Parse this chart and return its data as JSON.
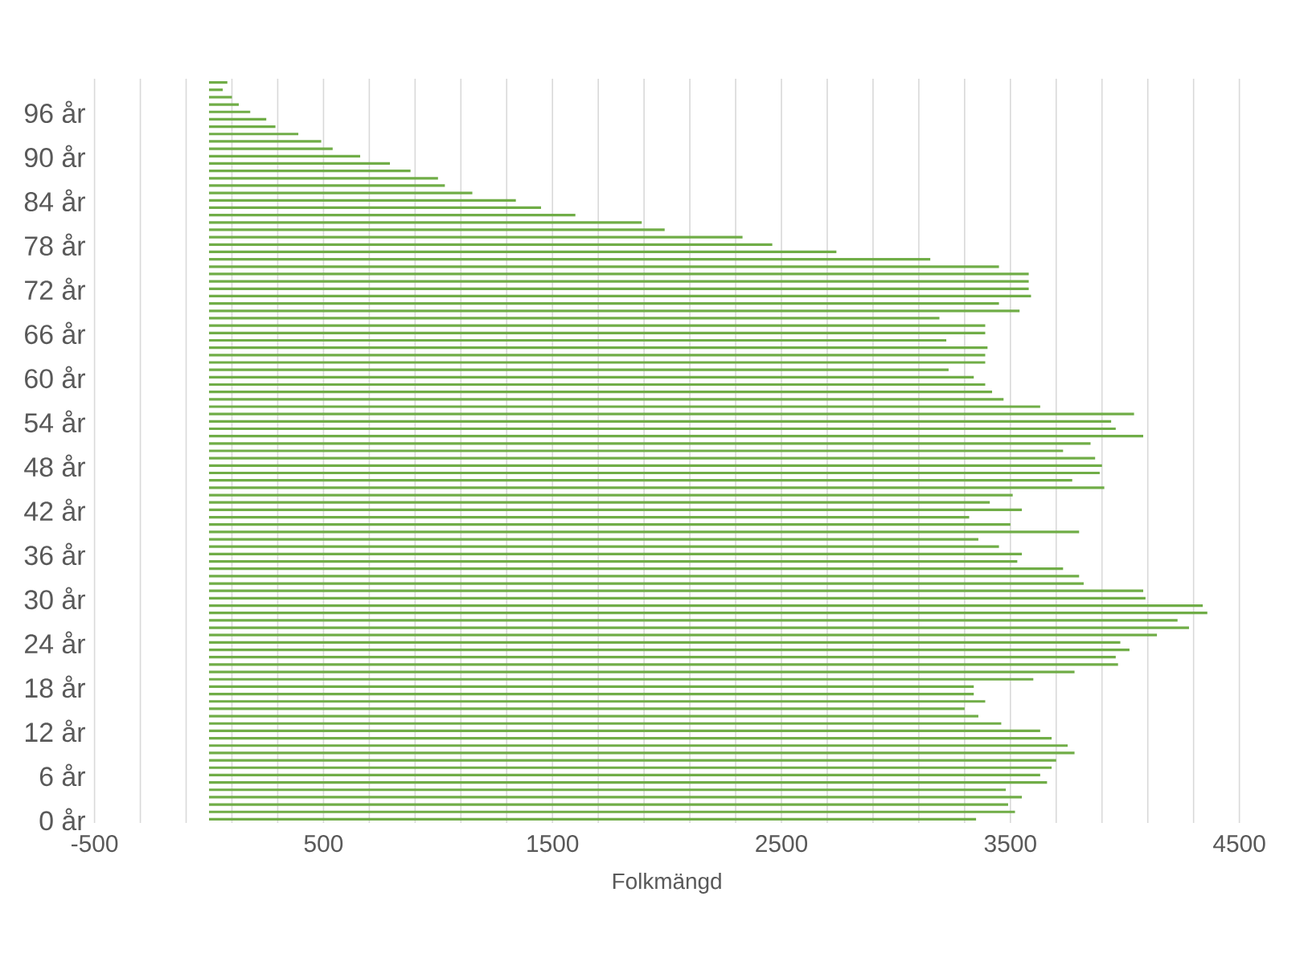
{
  "chart_data": {
    "type": "bar",
    "orientation": "horizontal",
    "xlabel": "Folkmängd",
    "color": "#70ad47",
    "grid": "x",
    "categories": [
      null,
      null,
      null,
      null,
      "96 år",
      null,
      null,
      null,
      null,
      null,
      "90 år",
      null,
      null,
      null,
      null,
      null,
      "84 år",
      null,
      null,
      null,
      null,
      null,
      "78 år",
      null,
      null,
      null,
      null,
      null,
      "72 år",
      null,
      null,
      null,
      null,
      null,
      "66 år",
      null,
      null,
      null,
      null,
      null,
      "60 år",
      null,
      null,
      null,
      null,
      null,
      "54 år",
      null,
      null,
      null,
      null,
      null,
      "48 år",
      null,
      null,
      null,
      null,
      null,
      "42 år",
      null,
      null,
      null,
      null,
      null,
      "36 år",
      null,
      null,
      null,
      null,
      null,
      "30 år",
      null,
      null,
      null,
      null,
      null,
      "24 år",
      null,
      null,
      null,
      null,
      null,
      "18 år",
      null,
      null,
      null,
      null,
      null,
      "12 år",
      null,
      null,
      null,
      null,
      null,
      "6 år",
      null,
      null,
      null,
      null,
      null,
      "0 år"
    ],
    "values": [
      80,
      60,
      100,
      130,
      180,
      250,
      290,
      390,
      490,
      540,
      660,
      790,
      880,
      1000,
      1030,
      1150,
      1340,
      1450,
      1600,
      1890,
      1990,
      2330,
      2460,
      2740,
      3150,
      3450,
      3580,
      3580,
      3580,
      3590,
      3450,
      3540,
      3190,
      3390,
      3390,
      3220,
      3400,
      3390,
      3390,
      3230,
      3340,
      3390,
      3420,
      3470,
      3630,
      4040,
      3940,
      3960,
      4080,
      3850,
      3730,
      3870,
      3900,
      3890,
      3770,
      3910,
      3510,
      3410,
      3550,
      3320,
      3500,
      3800,
      3360,
      3450,
      3550,
      3530,
      3730,
      3800,
      3820,
      4080,
      4090,
      4340,
      4360,
      4230,
      4280,
      4140,
      3980,
      4020,
      3960,
      3970,
      3780,
      3600,
      3340,
      3340,
      3390,
      3300,
      3360,
      3460,
      3630,
      3680,
      3750,
      3780,
      3700,
      3680,
      3630,
      3660,
      3480,
      3550,
      3490,
      3520,
      3350
    ],
    "xlim": [
      -500,
      4500
    ],
    "xticks": [
      -500,
      {
        "value": -300,
        "label": null
      },
      {
        "value": -100,
        "label": null
      },
      {
        "value": 100,
        "label": null
      },
      {
        "value": 300,
        "label": null
      },
      500,
      {
        "value": 700,
        "label": null
      },
      {
        "value": 900,
        "label": null
      },
      {
        "value": 1100,
        "label": null
      },
      {
        "value": 1300,
        "label": null
      },
      1500,
      {
        "value": 1700,
        "label": null
      },
      {
        "value": 1900,
        "label": null
      },
      {
        "value": 2100,
        "label": null
      },
      {
        "value": 2300,
        "label": null
      },
      2500,
      {
        "value": 2700,
        "label": null
      },
      {
        "value": 2900,
        "label": null
      },
      {
        "value": 3100,
        "label": null
      },
      {
        "value": 3300,
        "label": null
      },
      3500,
      {
        "value": 3700,
        "label": null
      },
      {
        "value": 3900,
        "label": null
      },
      {
        "value": 4100,
        "label": null
      },
      {
        "value": 4300,
        "label": null
      },
      4500
    ]
  }
}
